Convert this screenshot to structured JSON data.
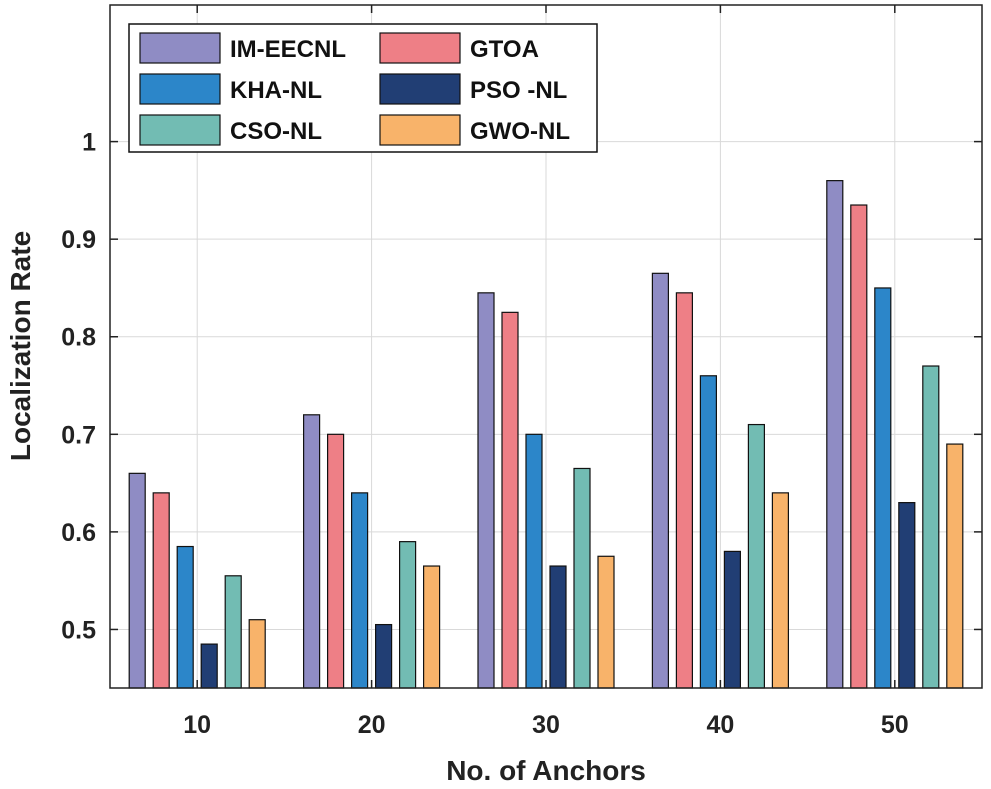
{
  "chart_data": {
    "type": "bar",
    "title": "",
    "xlabel": "No. of Anchors",
    "ylabel": "Localization Rate",
    "categories": [
      "10",
      "20",
      "30",
      "40",
      "50"
    ],
    "ylim": [
      0.44,
      1.14
    ],
    "yticks": [
      "0.5",
      "0.6",
      "0.7",
      "0.8",
      "0.9",
      "1"
    ],
    "ytick_values": [
      0.5,
      0.6,
      0.7,
      0.8,
      0.9,
      1.0
    ],
    "grid": true,
    "legend_position": "top-left",
    "series": [
      {
        "name": "IM-EECNL",
        "color": "#8f8cc4",
        "values": [
          0.66,
          0.72,
          0.845,
          0.865,
          0.96
        ]
      },
      {
        "name": "GTOA",
        "color": "#ee7f86",
        "values": [
          0.64,
          0.7,
          0.825,
          0.845,
          0.935
        ]
      },
      {
        "name": "KHA-NL",
        "color": "#2c86c9",
        "values": [
          0.585,
          0.64,
          0.7,
          0.76,
          0.85
        ]
      },
      {
        "name": "PSO -NL",
        "color": "#213e74",
        "values": [
          0.485,
          0.505,
          0.565,
          0.58,
          0.63
        ]
      },
      {
        "name": "CSO-NL",
        "color": "#72bcb3",
        "values": [
          0.555,
          0.59,
          0.665,
          0.71,
          0.77
        ]
      },
      {
        "name": "GWO-NL",
        "color": "#f8b36a",
        "values": [
          0.51,
          0.565,
          0.575,
          0.64,
          0.69
        ]
      }
    ]
  }
}
